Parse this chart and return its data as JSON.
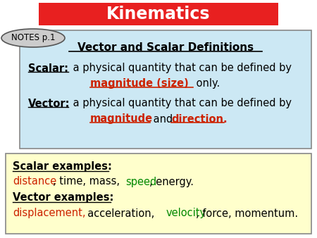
{
  "title": "Kinematics",
  "title_bg": "#e82020",
  "title_color": "#ffffff",
  "notes_label": "NOTES p.1",
  "top_box_bg": "#cce8f4",
  "bottom_box_bg": "#ffffcc",
  "top_box_title": "Vector and Scalar Definitions",
  "black": "#000000",
  "red": "#cc2200",
  "green": "#008800",
  "fig_bg": "#ffffff",
  "fs": 10.5
}
